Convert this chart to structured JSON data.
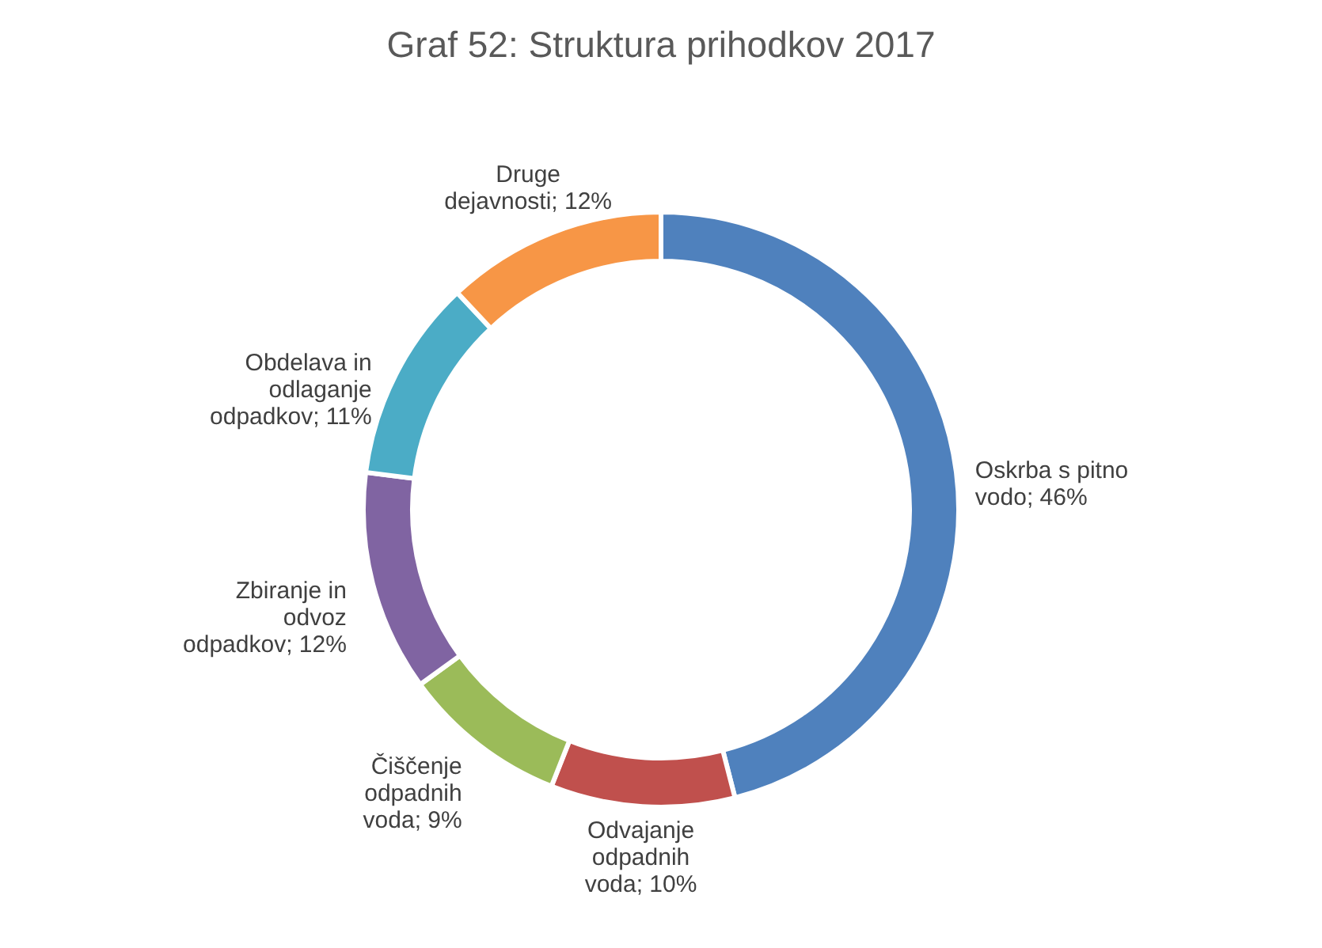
{
  "chart_data": {
    "type": "donut",
    "title": "Graf 52: Struktura prihodkov 2017",
    "categories": [
      "Oskrba s pitno vodo",
      "Odvajanje odpadnih voda",
      "Čiščenje odpadnih voda",
      "Zbiranje in odvoz odpadkov",
      "Obdelava in odlaganje odpadkov",
      "Druge dejavnosti"
    ],
    "values": [
      46,
      10,
      9,
      12,
      11,
      12
    ],
    "value_labels": [
      "46%",
      "10%",
      "9%",
      "12%",
      "11%",
      "12%"
    ],
    "colors": [
      "#4f81bd",
      "#c0504d",
      "#9bbb59",
      "#8064a2",
      "#4bacc6",
      "#f79646"
    ]
  }
}
